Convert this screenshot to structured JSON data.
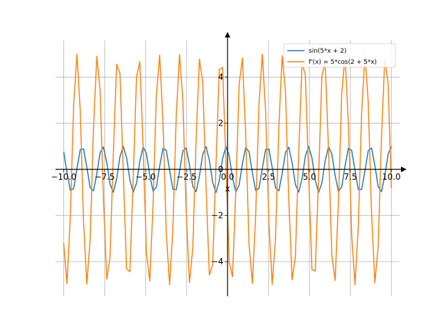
{
  "chart_data": {
    "type": "line",
    "title": "",
    "xlabel": "x",
    "ylabel": "",
    "xlim": [
      -10.5,
      10.5
    ],
    "ylim": [
      -5.5,
      5.6
    ],
    "grid": true,
    "legend_position": "top-right",
    "x_ticks": [
      {
        "value": -10,
        "label": "−10.0"
      },
      {
        "value": -7.5,
        "label": "−7.5"
      },
      {
        "value": -5,
        "label": "−5.0"
      },
      {
        "value": -2.5,
        "label": "−2.5"
      },
      {
        "value": 0,
        "label": "0.0"
      },
      {
        "value": 2.5,
        "label": "2.5"
      },
      {
        "value": 5,
        "label": "5.0"
      },
      {
        "value": 7.5,
        "label": "7.5"
      },
      {
        "value": 10,
        "label": "10.0"
      }
    ],
    "y_ticks": [
      {
        "value": -4,
        "label": "−4"
      },
      {
        "value": -2,
        "label": "−2"
      },
      {
        "value": 0,
        "label": "0"
      },
      {
        "value": 2,
        "label": "2"
      },
      {
        "value": 4,
        "label": "4"
      }
    ],
    "sampling": {
      "x_start": -10,
      "x_end": 10,
      "points": 100
    },
    "series": [
      {
        "name": "sin(5*x + 2)",
        "color": "#1f77b4",
        "amplitude": 1,
        "frequency": 5,
        "phase": 2,
        "kind": "sin"
      },
      {
        "name": "f'(x) = 5*cos(2 + 5*x)",
        "color": "#ff7f0e",
        "amplitude": 5,
        "frequency": 5,
        "phase": 2,
        "kind": "cos"
      }
    ]
  }
}
